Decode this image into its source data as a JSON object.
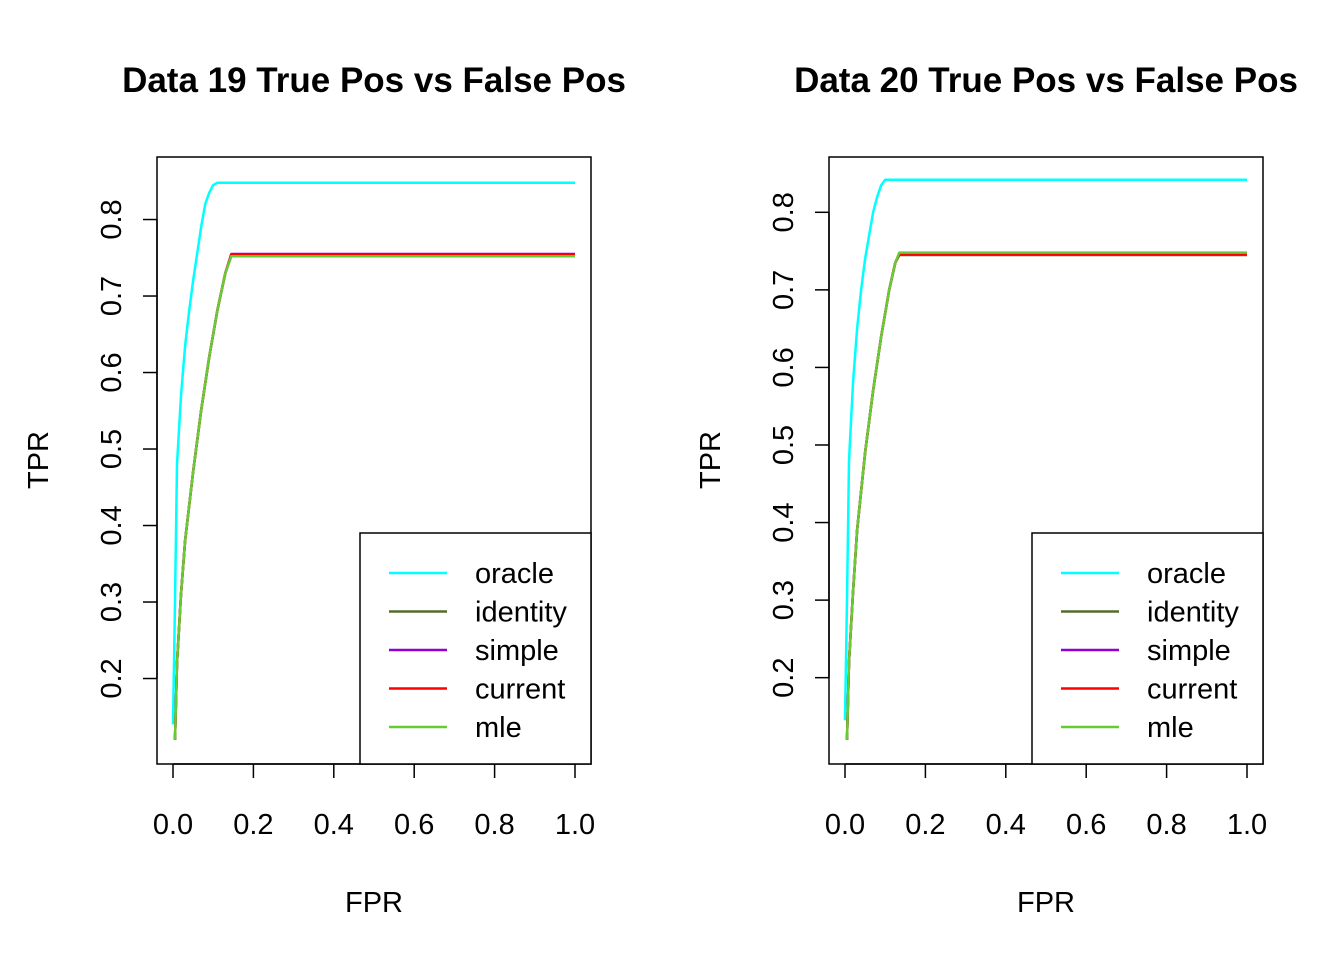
{
  "chart_data": [
    {
      "type": "line",
      "title": "Data 19 True Pos vs False Pos",
      "xlabel": "FPR",
      "ylabel": "TPR",
      "xlim": [
        0.0,
        1.0
      ],
      "ylim": [
        0.12,
        0.85
      ],
      "x_ticks": [
        "0.0",
        "0.2",
        "0.4",
        "0.6",
        "0.8",
        "1.0"
      ],
      "x_tick_values": [
        0.0,
        0.2,
        0.4,
        0.6,
        0.8,
        1.0
      ],
      "y_ticks": [
        "0.2",
        "0.3",
        "0.4",
        "0.5",
        "0.6",
        "0.7",
        "0.8"
      ],
      "y_tick_values": [
        0.2,
        0.3,
        0.4,
        0.5,
        0.6,
        0.7,
        0.8
      ],
      "grid": false,
      "legend_position": "bottom-right",
      "series": [
        {
          "name": "oracle",
          "color": "#00FFFF",
          "x": [
            0.0,
            0.005,
            0.01,
            0.02,
            0.03,
            0.04,
            0.05,
            0.06,
            0.07,
            0.08,
            0.09,
            0.1,
            0.11,
            1.0
          ],
          "y": [
            0.14,
            0.3,
            0.48,
            0.57,
            0.635,
            0.68,
            0.72,
            0.755,
            0.79,
            0.82,
            0.835,
            0.845,
            0.848,
            0.848
          ]
        },
        {
          "name": "identity",
          "color": "#556B2F",
          "x": [
            0.005,
            0.01,
            0.02,
            0.03,
            0.05,
            0.07,
            0.09,
            0.11,
            0.13,
            0.145,
            0.15,
            1.0
          ],
          "y": [
            0.12,
            0.22,
            0.31,
            0.38,
            0.47,
            0.55,
            0.62,
            0.68,
            0.73,
            0.752,
            0.753,
            0.753
          ]
        },
        {
          "name": "simple",
          "color": "#9400D3",
          "x": [
            0.005,
            0.01,
            0.02,
            0.03,
            0.05,
            0.07,
            0.09,
            0.11,
            0.13,
            0.145,
            0.15,
            1.0
          ],
          "y": [
            0.12,
            0.22,
            0.31,
            0.38,
            0.47,
            0.55,
            0.62,
            0.68,
            0.73,
            0.755,
            0.755,
            0.755
          ]
        },
        {
          "name": "current",
          "color": "#FF0000",
          "x": [
            0.005,
            0.01,
            0.02,
            0.03,
            0.05,
            0.07,
            0.09,
            0.11,
            0.13,
            0.145,
            0.15,
            1.0
          ],
          "y": [
            0.12,
            0.22,
            0.31,
            0.38,
            0.47,
            0.55,
            0.62,
            0.68,
            0.73,
            0.754,
            0.754,
            0.754
          ]
        },
        {
          "name": "mle",
          "color": "#66CC33",
          "x": [
            0.005,
            0.01,
            0.02,
            0.03,
            0.05,
            0.07,
            0.09,
            0.11,
            0.13,
            0.145,
            0.15,
            1.0
          ],
          "y": [
            0.12,
            0.22,
            0.31,
            0.38,
            0.47,
            0.55,
            0.62,
            0.68,
            0.73,
            0.752,
            0.752,
            0.752
          ]
        }
      ]
    },
    {
      "type": "line",
      "title": "Data 20 True Pos vs False Pos",
      "xlabel": "FPR",
      "ylabel": "TPR",
      "xlim": [
        0.0,
        1.0
      ],
      "ylim": [
        0.12,
        0.84
      ],
      "x_ticks": [
        "0.0",
        "0.2",
        "0.4",
        "0.6",
        "0.8",
        "1.0"
      ],
      "x_tick_values": [
        0.0,
        0.2,
        0.4,
        0.6,
        0.8,
        1.0
      ],
      "y_ticks": [
        "0.2",
        "0.3",
        "0.4",
        "0.5",
        "0.6",
        "0.7",
        "0.8"
      ],
      "y_tick_values": [
        0.2,
        0.3,
        0.4,
        0.5,
        0.6,
        0.7,
        0.8
      ],
      "grid": false,
      "legend_position": "bottom-right",
      "series": [
        {
          "name": "oracle",
          "color": "#00FFFF",
          "x": [
            0.0,
            0.005,
            0.01,
            0.02,
            0.03,
            0.04,
            0.05,
            0.06,
            0.07,
            0.08,
            0.09,
            0.1,
            0.11,
            1.0
          ],
          "y": [
            0.145,
            0.3,
            0.48,
            0.58,
            0.65,
            0.7,
            0.74,
            0.77,
            0.8,
            0.82,
            0.835,
            0.842,
            0.842,
            0.842
          ]
        },
        {
          "name": "identity",
          "color": "#556B2F",
          "x": [
            0.005,
            0.01,
            0.02,
            0.03,
            0.05,
            0.07,
            0.09,
            0.11,
            0.125,
            0.135,
            1.0
          ],
          "y": [
            0.12,
            0.22,
            0.31,
            0.39,
            0.49,
            0.57,
            0.64,
            0.7,
            0.735,
            0.745,
            0.745
          ]
        },
        {
          "name": "simple",
          "color": "#9400D3",
          "x": [
            0.005,
            0.01,
            0.02,
            0.03,
            0.05,
            0.07,
            0.09,
            0.11,
            0.125,
            0.135,
            1.0
          ],
          "y": [
            0.12,
            0.22,
            0.31,
            0.39,
            0.49,
            0.57,
            0.64,
            0.7,
            0.735,
            0.747,
            0.747
          ]
        },
        {
          "name": "current",
          "color": "#FF0000",
          "x": [
            0.005,
            0.01,
            0.02,
            0.03,
            0.05,
            0.07,
            0.09,
            0.11,
            0.125,
            0.135,
            1.0
          ],
          "y": [
            0.12,
            0.22,
            0.31,
            0.39,
            0.49,
            0.57,
            0.64,
            0.7,
            0.735,
            0.746,
            0.746
          ]
        },
        {
          "name": "mle",
          "color": "#66CC33",
          "x": [
            0.005,
            0.01,
            0.02,
            0.03,
            0.05,
            0.07,
            0.09,
            0.11,
            0.125,
            0.135,
            1.0
          ],
          "y": [
            0.12,
            0.22,
            0.31,
            0.39,
            0.49,
            0.57,
            0.64,
            0.7,
            0.735,
            0.748,
            0.748
          ]
        }
      ]
    }
  ]
}
